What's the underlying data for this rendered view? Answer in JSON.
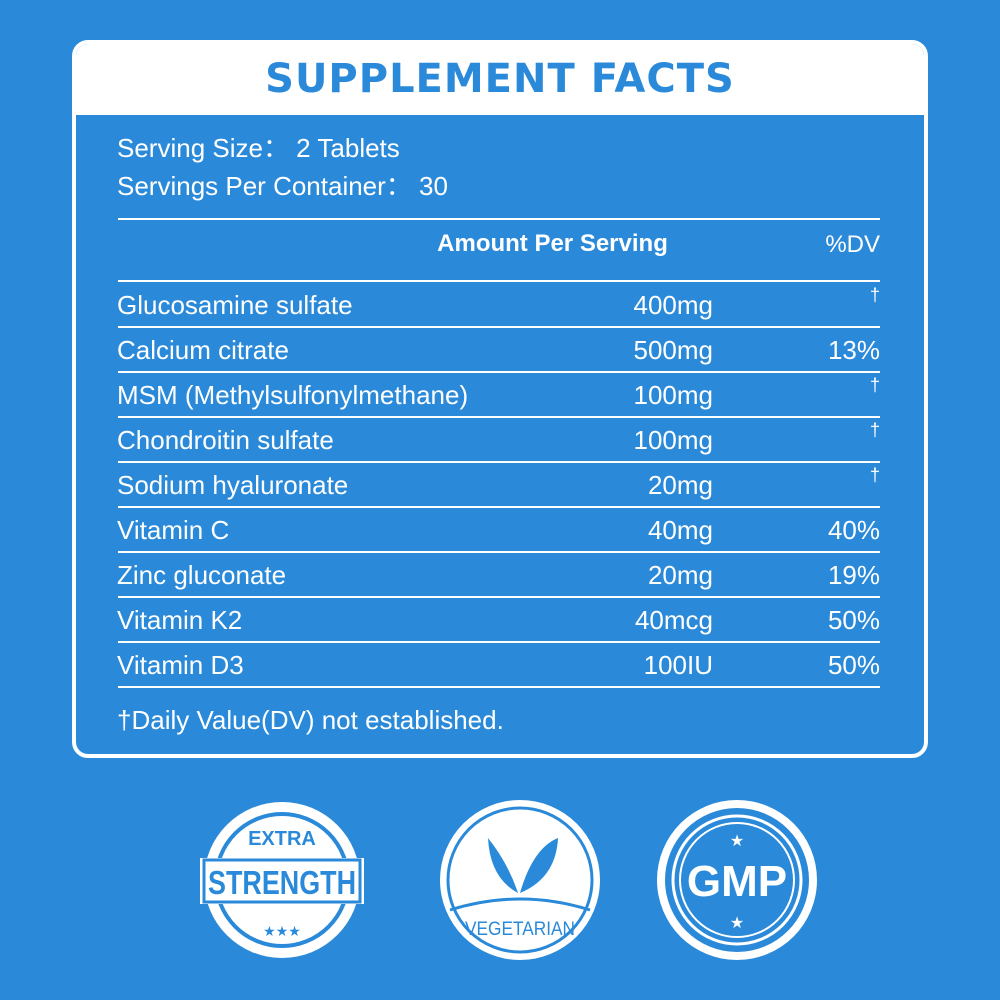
{
  "title": "SUPPLEMENT FACTS",
  "serving_size": "Serving Size： 2 Tablets",
  "servings_per_container": "Servings Per Container： 30",
  "col_amount": "Amount Per Serving",
  "col_dv": "%DV",
  "rows": [
    {
      "name": "Glucosamine sulfate",
      "amount": "400mg",
      "dv": "†"
    },
    {
      "name": "Calcium citrate",
      "amount": "500mg",
      "dv": "13%"
    },
    {
      "name": "MSM (Methylsulfonylmethane)",
      "amount": "100mg",
      "dv": "†"
    },
    {
      "name": "Chondroitin sulfate",
      "amount": "100mg",
      "dv": "†"
    },
    {
      "name": "Sodium hyaluronate",
      "amount": "20mg",
      "dv": "†"
    },
    {
      "name": "Vitamin C",
      "amount": "40mg",
      "dv": "40%"
    },
    {
      "name": "Zinc gluconate",
      "amount": "20mg",
      "dv": "19%"
    },
    {
      "name": "Vitamin K2",
      "amount": "40mcg",
      "dv": "50%"
    },
    {
      "name": "Vitamin D3",
      "amount": "100IU",
      "dv": "50%"
    }
  ],
  "footnote": "†Daily Value(DV) not established.",
  "badges": {
    "extra": "EXTRA",
    "strength": "STRENGTH",
    "vegetarian": "VEGETARIAN",
    "gmp": "GMP"
  },
  "colors": {
    "background": "#2a8ad9",
    "white": "#ffffff"
  }
}
